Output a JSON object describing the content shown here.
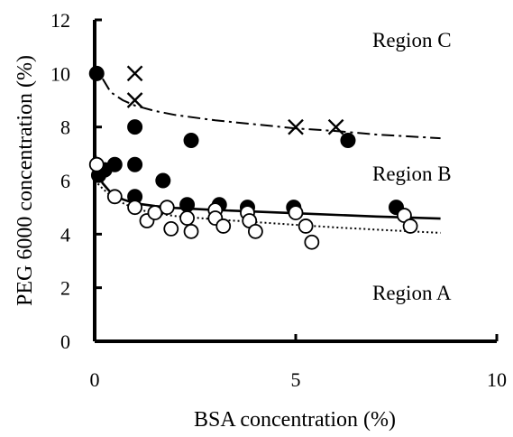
{
  "chart_data": {
    "type": "scatter",
    "xlabel": "BSA concentration (%)",
    "ylabel": "PEG 6000 concentration (%)",
    "xlim": [
      0,
      10
    ],
    "ylim": [
      0,
      12
    ],
    "x_ticks": [
      "0",
      "5",
      "10"
    ],
    "y_ticks": [
      "0",
      "2",
      "4",
      "6",
      "8",
      "10",
      "12"
    ],
    "grid": false,
    "annotations": [
      "Region C",
      "Region B",
      "Region A"
    ],
    "series": [
      {
        "marker": "cross",
        "points": [
          [
            1.0,
            10.0
          ],
          [
            1.0,
            9.0
          ],
          [
            5.0,
            8.0
          ],
          [
            6.0,
            8.0
          ]
        ]
      },
      {
        "marker": "filled-circle",
        "points": [
          [
            0.05,
            10.0
          ],
          [
            0.1,
            6.2
          ],
          [
            0.25,
            6.4
          ],
          [
            0.5,
            6.6
          ],
          [
            1.0,
            8.0
          ],
          [
            1.0,
            6.6
          ],
          [
            1.0,
            5.4
          ],
          [
            1.7,
            6.0
          ],
          [
            2.4,
            7.5
          ],
          [
            2.3,
            5.1
          ],
          [
            3.1,
            5.1
          ],
          [
            3.8,
            5.0
          ],
          [
            4.95,
            5.0
          ],
          [
            6.3,
            7.5
          ],
          [
            7.5,
            5.0
          ]
        ]
      },
      {
        "marker": "open-circle",
        "points": [
          [
            0.05,
            6.6
          ],
          [
            0.5,
            5.4
          ],
          [
            1.0,
            5.0
          ],
          [
            1.3,
            4.5
          ],
          [
            1.5,
            4.8
          ],
          [
            1.8,
            5.0
          ],
          [
            1.9,
            4.2
          ],
          [
            2.3,
            4.6
          ],
          [
            2.4,
            4.1
          ],
          [
            3.0,
            4.9
          ],
          [
            3.0,
            4.6
          ],
          [
            3.2,
            4.3
          ],
          [
            3.8,
            4.8
          ],
          [
            3.85,
            4.5
          ],
          [
            4.0,
            4.1
          ],
          [
            5.0,
            4.8
          ],
          [
            5.25,
            4.3
          ],
          [
            5.4,
            3.7
          ],
          [
            7.7,
            4.7
          ],
          [
            7.85,
            4.3
          ]
        ]
      }
    ],
    "fit_lines": [
      {
        "style": "dash-dot",
        "points": [
          [
            0.2,
            9.8
          ],
          [
            0.4,
            9.3
          ],
          [
            0.7,
            9.0
          ],
          [
            1.0,
            8.8
          ],
          [
            1.5,
            8.6
          ],
          [
            2.0,
            8.45
          ],
          [
            3.0,
            8.25
          ],
          [
            4.0,
            8.1
          ],
          [
            5.0,
            7.95
          ],
          [
            6.0,
            7.85
          ],
          [
            7.0,
            7.72
          ],
          [
            8.6,
            7.58
          ]
        ]
      },
      {
        "style": "solid",
        "points": [
          [
            0.0,
            7.1
          ],
          [
            0.1,
            6.2
          ],
          [
            0.2,
            5.9
          ],
          [
            0.4,
            5.55
          ],
          [
            0.7,
            5.3
          ],
          [
            1.0,
            5.15
          ],
          [
            1.5,
            5.05
          ],
          [
            2.0,
            4.98
          ],
          [
            3.0,
            4.9
          ],
          [
            5.0,
            4.78
          ],
          [
            7.0,
            4.66
          ],
          [
            8.6,
            4.58
          ]
        ]
      },
      {
        "style": "dotted",
        "points": [
          [
            0.0,
            6.0
          ],
          [
            0.2,
            5.7
          ],
          [
            0.5,
            5.3
          ],
          [
            1.0,
            4.95
          ],
          [
            1.5,
            4.78
          ],
          [
            2.0,
            4.68
          ],
          [
            3.0,
            4.55
          ],
          [
            4.0,
            4.45
          ],
          [
            5.0,
            4.35
          ],
          [
            6.0,
            4.25
          ],
          [
            7.0,
            4.17
          ],
          [
            8.6,
            4.05
          ]
        ]
      }
    ]
  }
}
